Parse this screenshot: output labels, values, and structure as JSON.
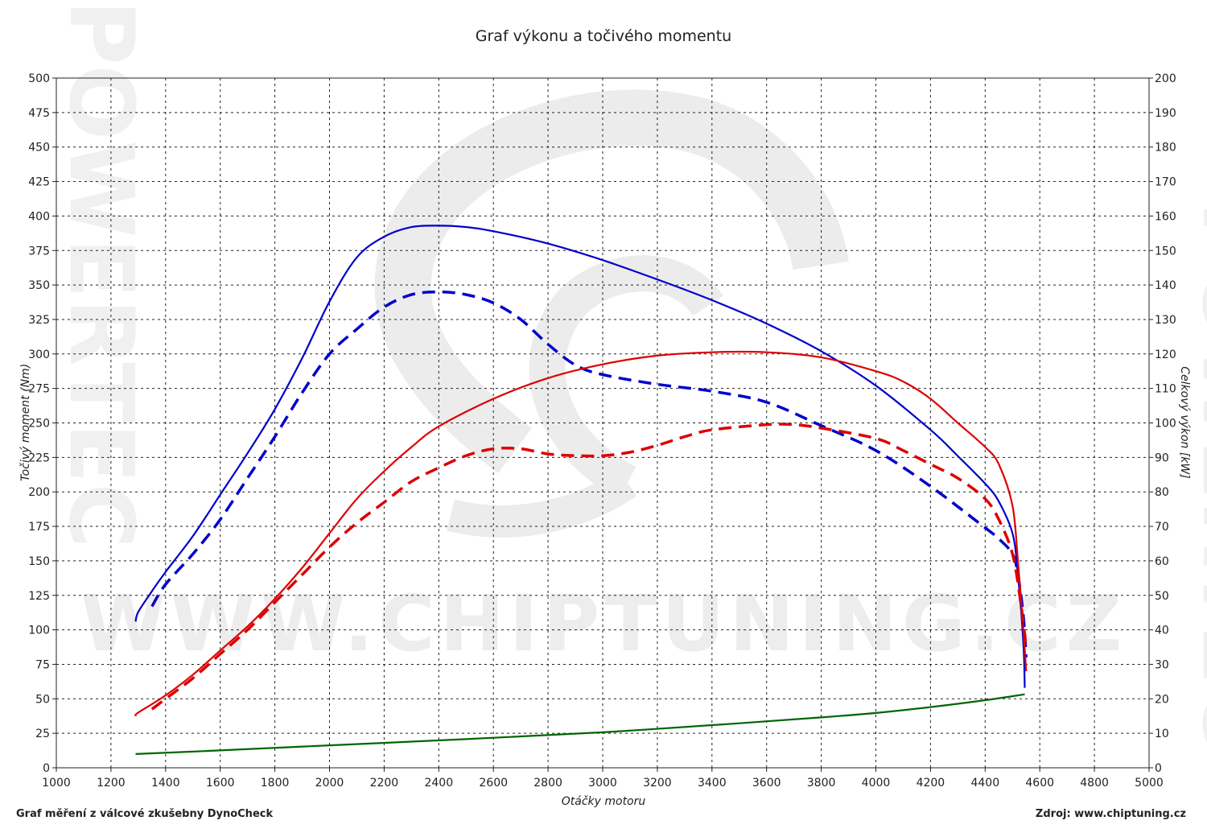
{
  "title": "Graf výkonu a točivého momentu",
  "footer": {
    "left": "Graf měření z válcové zkušebny DynoCheck",
    "right": "Zdroj: www.chiptuning.cz"
  },
  "watermark": {
    "url": "WWW.CHIPTUNING.CZ",
    "side_text": "POWERTEC"
  },
  "colors": {
    "torque": "#0000cc",
    "power": "#dd0000",
    "loss": "#006600",
    "grid": "#222222"
  },
  "chart_data": {
    "type": "line",
    "xlabel": "Otáčky motoru",
    "ylabel_left": "Točivý moment (Nm)",
    "ylabel_right": "Celkový výkon [kW]",
    "xlim": [
      1000,
      5000
    ],
    "ylim_left": [
      0,
      500
    ],
    "ylim_right": [
      0,
      200
    ],
    "grid": true,
    "x_ticks": [
      1000,
      1200,
      1400,
      1600,
      1800,
      2000,
      2200,
      2400,
      2600,
      2800,
      3000,
      3200,
      3400,
      3600,
      3800,
      4000,
      4200,
      4400,
      4600,
      4800,
      5000
    ],
    "y_ticks_left": [
      0,
      25,
      50,
      75,
      100,
      125,
      150,
      175,
      200,
      225,
      250,
      275,
      300,
      325,
      350,
      375,
      400,
      425,
      450,
      475,
      500
    ],
    "y_ticks_right": [
      0,
      10,
      20,
      30,
      40,
      50,
      60,
      70,
      80,
      90,
      100,
      110,
      120,
      130,
      140,
      150,
      160,
      170,
      180,
      190,
      200
    ],
    "series": [
      {
        "axis": "left",
        "style": "solid",
        "color": "#0000cc",
        "x": [
          1290,
          1300,
          1350,
          1400,
          1500,
          1600,
          1700,
          1800,
          1900,
          2000,
          2100,
          2200,
          2300,
          2400,
          2500,
          2600,
          2800,
          3000,
          3200,
          3400,
          3600,
          3800,
          4000,
          4200,
          4300,
          4400,
          4450,
          4500,
          4520,
          4540,
          4545
        ],
        "y": [
          106,
          113,
          128,
          142,
          168,
          198,
          228,
          260,
          297,
          338,
          370,
          385,
          392,
          393,
          392,
          389,
          380,
          368,
          354,
          339,
          322,
          302,
          277,
          245,
          226,
          206,
          193,
          170,
          140,
          90,
          58
        ]
      },
      {
        "axis": "left",
        "style": "dashed",
        "color": "#0000cc",
        "x": [
          1350,
          1400,
          1500,
          1600,
          1700,
          1800,
          1900,
          2000,
          2100,
          2200,
          2300,
          2400,
          2500,
          2600,
          2700,
          2800,
          2900,
          3000,
          3200,
          3400,
          3600,
          3800,
          4000,
          4200,
          4400,
          4450,
          4500,
          4520,
          4540,
          4550
        ],
        "y": [
          117,
          133,
          155,
          180,
          210,
          240,
          272,
          300,
          318,
          334,
          343,
          345,
          343,
          337,
          325,
          307,
          292,
          285,
          278,
          273,
          265,
          248,
          230,
          204,
          174,
          166,
          155,
          140,
          110,
          80
        ]
      },
      {
        "axis": "right",
        "style": "solid",
        "color": "#dd0000",
        "x": [
          1290,
          1300,
          1400,
          1500,
          1600,
          1700,
          1800,
          1900,
          2000,
          2100,
          2200,
          2300,
          2400,
          2600,
          2800,
          3000,
          3200,
          3400,
          3600,
          3800,
          4000,
          4100,
          4200,
          4300,
          4400,
          4450,
          4500,
          4520,
          4540,
          4550
        ],
        "y": [
          15,
          16,
          21,
          27,
          34,
          41,
          49,
          58,
          68,
          78,
          86,
          93,
          99,
          107,
          113,
          117,
          119.5,
          120.5,
          120.5,
          119,
          115,
          112,
          107,
          100,
          93,
          88,
          76,
          60,
          40,
          28
        ]
      },
      {
        "axis": "right",
        "style": "dashed",
        "color": "#dd0000",
        "x": [
          1350,
          1400,
          1500,
          1600,
          1700,
          1800,
          1900,
          2000,
          2100,
          2200,
          2300,
          2400,
          2500,
          2600,
          2700,
          2800,
          2900,
          3000,
          3100,
          3200,
          3300,
          3400,
          3600,
          3700,
          3800,
          4000,
          4100,
          4200,
          4300,
          4400,
          4450,
          4500,
          4530,
          4550
        ],
        "y": [
          17,
          20,
          26,
          33,
          40,
          48,
          56,
          64,
          71,
          77,
          83,
          87,
          90.5,
          92.5,
          92.5,
          91,
          90.5,
          90.5,
          91.5,
          93.5,
          96,
          98,
          99.5,
          99.5,
          98.5,
          95.5,
          92,
          88,
          84,
          78,
          72,
          62,
          48,
          35
        ]
      },
      {
        "axis": "right",
        "style": "solid",
        "color": "#006600",
        "x": [
          1290,
          1500,
          2000,
          2500,
          3000,
          3500,
          3800,
          4000,
          4200,
          4400,
          4545
        ],
        "y": [
          4,
          4.7,
          6.5,
          8.3,
          10.3,
          12.9,
          14.6,
          15.9,
          17.6,
          19.6,
          21.3
        ]
      }
    ]
  }
}
